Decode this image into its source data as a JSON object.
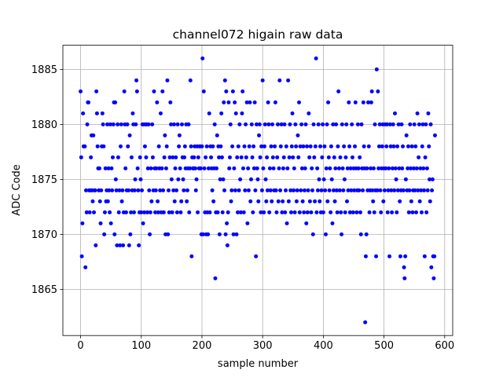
{
  "chart_data": {
    "type": "scatter",
    "title": "channel072 higain raw data",
    "x_label": "sample number",
    "y_label": "ADC Code",
    "xlim": [
      -29.2,
      613.2
    ],
    "ylim": [
      1860.8,
      1887.2
    ],
    "xticks": [
      0,
      100,
      200,
      300,
      400,
      500,
      600
    ],
    "yticks": [
      1865,
      1870,
      1875,
      1880,
      1885
    ],
    "grid": true,
    "series": [
      {
        "color": "#0000ff",
        "x": [
          0,
          1,
          2,
          3,
          4,
          5,
          6,
          7,
          8,
          9,
          10,
          11,
          12,
          13,
          14,
          15,
          16,
          17,
          18,
          19,
          20,
          21,
          22,
          23,
          24,
          25,
          26,
          27,
          28,
          29,
          30,
          31,
          32,
          33,
          34,
          35,
          36,
          37,
          38,
          39,
          40,
          41,
          42,
          43,
          44,
          45,
          46,
          47,
          48,
          49,
          50,
          51,
          52,
          53,
          54,
          55,
          56,
          57,
          58,
          59,
          60,
          61,
          62,
          63,
          64,
          65,
          66,
          67,
          68,
          69,
          70,
          71,
          72,
          73,
          74,
          75,
          76,
          77,
          78,
          79,
          80,
          81,
          82,
          83,
          84,
          85,
          86,
          87,
          88,
          89,
          90,
          91,
          92,
          93,
          94,
          95,
          96,
          97,
          98,
          99,
          100,
          101,
          102,
          103,
          104,
          105,
          106,
          107,
          108,
          109,
          110,
          111,
          112,
          113,
          114,
          115,
          116,
          117,
          118,
          119,
          120,
          121,
          122,
          123,
          124,
          125,
          126,
          127,
          128,
          129,
          130,
          131,
          132,
          133,
          134,
          135,
          136,
          137,
          138,
          139,
          140,
          141,
          142,
          143,
          144,
          145,
          146,
          147,
          148,
          149,
          150,
          151,
          152,
          153,
          154,
          155,
          156,
          157,
          158,
          159,
          160,
          161,
          162,
          163,
          164,
          165,
          166,
          167,
          168,
          169,
          170,
          171,
          172,
          173,
          174,
          175,
          176,
          177,
          178,
          179,
          180,
          181,
          182,
          183,
          184,
          185,
          186,
          187,
          188,
          189,
          190,
          191,
          192,
          193,
          194,
          195,
          196,
          197,
          198,
          199,
          200,
          201,
          202,
          203,
          204,
          205,
          206,
          207,
          208,
          209,
          210,
          211,
          212,
          213,
          214,
          215,
          216,
          217,
          218,
          219,
          220,
          221,
          222,
          223,
          224,
          225,
          226,
          227,
          228,
          229,
          230,
          231,
          232,
          233,
          234,
          235,
          236,
          237,
          238,
          239,
          240,
          241,
          242,
          243,
          244,
          245,
          246,
          247,
          248,
          249,
          250,
          251,
          252,
          253,
          254,
          255,
          256,
          257,
          258,
          259,
          260,
          261,
          262,
          263,
          264,
          265,
          266,
          267,
          268,
          269,
          270,
          271,
          272,
          273,
          274,
          275,
          276,
          277,
          278,
          279,
          280,
          281,
          282,
          283,
          284,
          285,
          286,
          287,
          288,
          289,
          290,
          291,
          292,
          293,
          294,
          295,
          296,
          297,
          298,
          299,
          300,
          301,
          302,
          303,
          304,
          305,
          306,
          307,
          308,
          309,
          310,
          311,
          312,
          313,
          314,
          315,
          316,
          317,
          318,
          319,
          320,
          321,
          322,
          323,
          324,
          325,
          326,
          327,
          328,
          329,
          330,
          331,
          332,
          333,
          334,
          335,
          336,
          337,
          338,
          339,
          340,
          341,
          342,
          343,
          344,
          345,
          346,
          347,
          348,
          349,
          350,
          351,
          352,
          353,
          354,
          355,
          356,
          357,
          358,
          359,
          360,
          361,
          362,
          363,
          364,
          365,
          366,
          367,
          368,
          369,
          370,
          371,
          372,
          373,
          374,
          375,
          376,
          377,
          378,
          379,
          380,
          381,
          382,
          383,
          384,
          385,
          386,
          387,
          388,
          389,
          390,
          391,
          392,
          393,
          394,
          395,
          396,
          397,
          398,
          399,
          400,
          401,
          402,
          403,
          404,
          405,
          406,
          407,
          408,
          409,
          410,
          411,
          412,
          413,
          414,
          415,
          416,
          417,
          418,
          419,
          420,
          421,
          422,
          423,
          424,
          425,
          426,
          427,
          428,
          429,
          430,
          431,
          432,
          433,
          434,
          435,
          436,
          437,
          438,
          439,
          440,
          441,
          442,
          443,
          444,
          445,
          446,
          447,
          448,
          449,
          450,
          451,
          452,
          453,
          454,
          455,
          456,
          457,
          458,
          459,
          460,
          461,
          462,
          463,
          464,
          465,
          466,
          467,
          468,
          469,
          470,
          471,
          472,
          473,
          474,
          475,
          476,
          477,
          478,
          479,
          480,
          481,
          482,
          483,
          484,
          485,
          486,
          487,
          488,
          489,
          490,
          491,
          492,
          493,
          494,
          495,
          496,
          497,
          498,
          499,
          500,
          501,
          502,
          503,
          504,
          505,
          506,
          507,
          508,
          509,
          510,
          511,
          512,
          513,
          514,
          515,
          516,
          517,
          518,
          519,
          520,
          521,
          522,
          523,
          524,
          525,
          526,
          527,
          528,
          529,
          530,
          531,
          532,
          533,
          534,
          535,
          536,
          537,
          538,
          539,
          540,
          541,
          542,
          543,
          544,
          545,
          546,
          547,
          548,
          549,
          550,
          551,
          552,
          553,
          554,
          555,
          556,
          557,
          558,
          559,
          560,
          561,
          562,
          563,
          564,
          565,
          566,
          567,
          568,
          569,
          570,
          571,
          572,
          573,
          574,
          575,
          576,
          577,
          578,
          579,
          580,
          581,
          582,
          583,
          584
        ],
        "values": [
          1883,
          1877,
          1868,
          1871,
          1881,
          1878,
          1878,
          1878,
          1867,
          1874,
          1872,
          1880,
          1882,
          1882,
          1874,
          1872,
          1874,
          1877,
          1879,
          1874,
          1873,
          1879,
          1872,
          1874,
          1874,
          1869,
          1883,
          1881,
          1878,
          1876,
          1874,
          1876,
          1873,
          1871,
          1874,
          1878,
          1881,
          1880,
          1878,
          1870,
          1872,
          1876,
          1873,
          1874,
          1880,
          1873,
          1876,
          1874,
          1872,
          1880,
          1871,
          1876,
          1874,
          1877,
          1880,
          1882,
          1870,
          1882,
          1875,
          1874,
          1869,
          1880,
          1877,
          1872,
          1874,
          1869,
          1878,
          1880,
          1873,
          1874,
          1869,
          1872,
          1883,
          1880,
          1876,
          1872,
          1874,
          1880,
          1878,
          1874,
          1869,
          1879,
          1870,
          1872,
          1877,
          1874,
          1881,
          1880,
          1872,
          1874,
          1875,
          1880,
          1884,
          1883,
          1876,
          1874,
          1869,
          1872,
          1877,
          1875,
          1872,
          1874,
          1880,
          1871,
          1880,
          1872,
          1878,
          1880,
          1877,
          1880,
          1872,
          1876,
          1880,
          1874,
          1870,
          1872,
          1876,
          1873,
          1880,
          1877,
          1874,
          1883,
          1876,
          1872,
          1874,
          1876,
          1882,
          1873,
          1872,
          1878,
          1876,
          1874,
          1881,
          1872,
          1876,
          1883,
          1874,
          1872,
          1877,
          1879,
          1870,
          1876,
          1878,
          1884,
          1870,
          1874,
          1872,
          1877,
          1882,
          1880,
          1875,
          1872,
          1877,
          1874,
          1880,
          1873,
          1876,
          1877,
          1874,
          1872,
          1880,
          1875,
          1878,
          1879,
          1876,
          1872,
          1873,
          1880,
          1877,
          1875,
          1874,
          1877,
          1878,
          1876,
          1880,
          1873,
          1874,
          1876,
          1880,
          1872,
          1876,
          1884,
          1878,
          1868,
          1877,
          1876,
          1876,
          1877,
          1878,
          1876,
          1874,
          1875,
          1878,
          1872,
          1877,
          1876,
          1878,
          1878,
          1876,
          1870,
          1878,
          1886,
          1870,
          1883,
          1876,
          1872,
          1877,
          1870,
          1878,
          1872,
          1870,
          1876,
          1881,
          1872,
          1878,
          1877,
          1876,
          1874,
          1878,
          1873,
          1876,
          1880,
          1866,
          1872,
          1876,
          1879,
          1872,
          1878,
          1877,
          1870,
          1875,
          1878,
          1881,
          1877,
          1872,
          1875,
          1882,
          1874,
          1884,
          1870,
          1883,
          1871,
          1869,
          1872,
          1882,
          1876,
          1877,
          1880,
          1873,
          1874,
          1878,
          1883,
          1870,
          1876,
          1882,
          1874,
          1881,
          1870,
          1877,
          1872,
          1878,
          1874,
          1880,
          1875,
          1872,
          1877,
          1881,
          1883,
          1876,
          1872,
          1878,
          1874,
          1880,
          1877,
          1882,
          1871,
          1876,
          1874,
          1878,
          1882,
          1873,
          1875,
          1880,
          1877,
          1872,
          1878,
          1876,
          1882,
          1874,
          1868,
          1880,
          1876,
          1875,
          1873,
          1879,
          1880,
          1877,
          1872,
          1878,
          1874,
          1884,
          1876,
          1872,
          1878,
          1880,
          1875,
          1873,
          1877,
          1874,
          1882,
          1880,
          1872,
          1876,
          1874,
          1878,
          1873,
          1880,
          1877,
          1876,
          1874,
          1878,
          1882,
          1874,
          1872,
          1877,
          1880,
          1873,
          1876,
          1884,
          1874,
          1878,
          1880,
          1872,
          1873,
          1876,
          1877,
          1880,
          1872,
          1874,
          1878,
          1871,
          1876,
          1884,
          1873,
          1877,
          1880,
          1874,
          1872,
          1878,
          1881,
          1877,
          1874,
          1876,
          1872,
          1880,
          1878,
          1873,
          1874,
          1879,
          1877,
          1882,
          1872,
          1878,
          1874,
          1880,
          1876,
          1873,
          1878,
          1872,
          1874,
          1876,
          1880,
          1871,
          1878,
          1872,
          1874,
          1881,
          1877,
          1873,
          1878,
          1872,
          1876,
          1874,
          1870,
          1880,
          1877,
          1873,
          1878,
          1886,
          1872,
          1876,
          1874,
          1880,
          1875,
          1873,
          1878,
          1872,
          1874,
          1877,
          1880,
          1872,
          1875,
          1878,
          1874,
          1870,
          1876,
          1880,
          1873,
          1882,
          1877,
          1874,
          1876,
          1872,
          1878,
          1875,
          1871,
          1880,
          1874,
          1877,
          1873,
          1876,
          1880,
          1874,
          1872,
          1878,
          1883,
          1876,
          1874,
          1877,
          1872,
          1870,
          1880,
          1876,
          1874,
          1878,
          1875,
          1872,
          1877,
          1880,
          1873,
          1876,
          1874,
          1882,
          1878,
          1872,
          1876,
          1874,
          1880,
          1877,
          1872,
          1876,
          1874,
          1878,
          1882,
          1876,
          1872,
          1874,
          1880,
          1876,
          1874,
          1877,
          1872,
          1870,
          1880,
          1876,
          1874,
          1882,
          1878,
          1876,
          1862,
          1868,
          1870,
          1876,
          1874,
          1882,
          1878,
          1872,
          1874,
          1876,
          1882,
          1883,
          1874,
          1873,
          1876,
          1872,
          1880,
          1874,
          1868,
          1885,
          1874,
          1883,
          1876,
          1878,
          1880,
          1874,
          1872,
          1876,
          1878,
          1880,
          1873,
          1876,
          1874,
          1880,
          1876,
          1878,
          1880,
          1872,
          1874,
          1876,
          1868,
          1880,
          1878,
          1874,
          1872,
          1876,
          1880,
          1878,
          1874,
          1881,
          1876,
          1875,
          1872,
          1878,
          1874,
          1880,
          1876,
          1873,
          1868,
          1874,
          1880,
          1876,
          1878,
          1874,
          1867,
          1866,
          1868,
          1875,
          1879,
          1874,
          1876,
          1878,
          1872,
          1874,
          1880,
          1876,
          1873,
          1878,
          1872,
          1874,
          1876,
          1880,
          1874,
          1878,
          1872,
          1876,
          1881,
          1874,
          1877,
          1880,
          1873,
          1876,
          1874,
          1872,
          1878,
          1880,
          1876,
          1874,
          1868,
          1877,
          1880,
          1872,
          1876,
          1874,
          1881,
          1878,
          1875,
          1873,
          1880,
          1867,
          1874,
          1875,
          1868,
          1866,
          1868,
          1879
        ]
      }
    ]
  }
}
